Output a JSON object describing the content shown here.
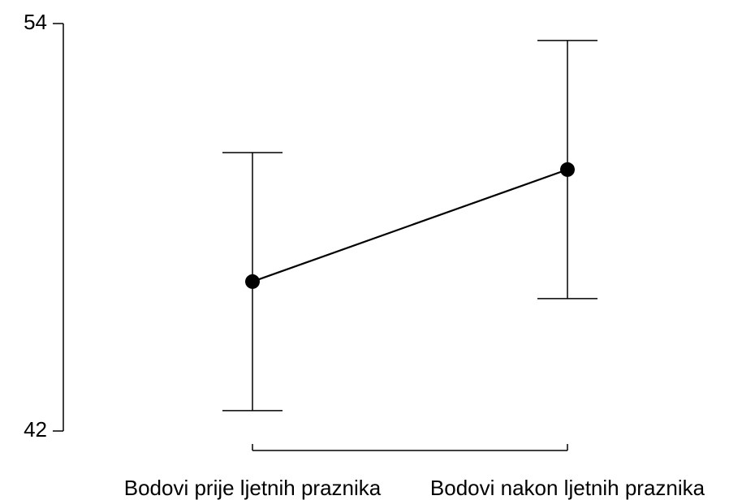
{
  "chart_data": {
    "type": "line",
    "categories": [
      "Bodovi prije ljetnih praznika",
      "Bodovi nakon ljetnih praznika"
    ],
    "values": [
      46.4,
      49.7
    ],
    "errors": [
      3.8,
      3.8
    ],
    "color": "#000000",
    "ylim": [
      42,
      54
    ],
    "yticks": [
      42,
      54
    ]
  }
}
